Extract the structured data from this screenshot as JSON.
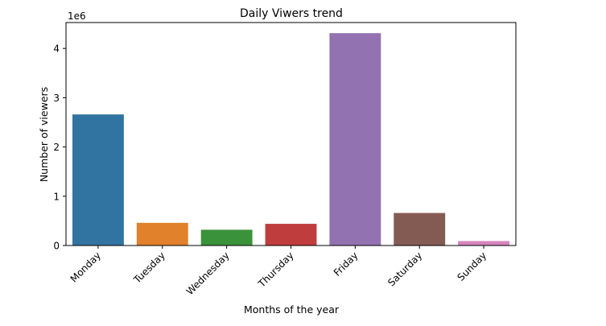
{
  "chart_data": {
    "type": "bar",
    "title": "Daily Viwers trend",
    "xlabel": "Months of the year",
    "ylabel": "Number of viewers",
    "y_offset_text": "1e6",
    "categories": [
      "Monday",
      "Tuesday",
      "Wednesday",
      "Thursday",
      "Friday",
      "Saturday",
      "Sunday"
    ],
    "values": [
      2660000,
      460000,
      320000,
      440000,
      4310000,
      660000,
      90000
    ],
    "colors": [
      "#3274a1",
      "#e1812c",
      "#3a923a",
      "#c03d3e",
      "#9372b2",
      "#845b53",
      "#d684bd"
    ],
    "ylim": [
      0,
      4525500
    ],
    "yticks": [
      0,
      1000000,
      2000000,
      3000000,
      4000000
    ],
    "ytick_labels": [
      "0",
      "1",
      "2",
      "3",
      "4"
    ],
    "grid": false,
    "legend": "none"
  }
}
